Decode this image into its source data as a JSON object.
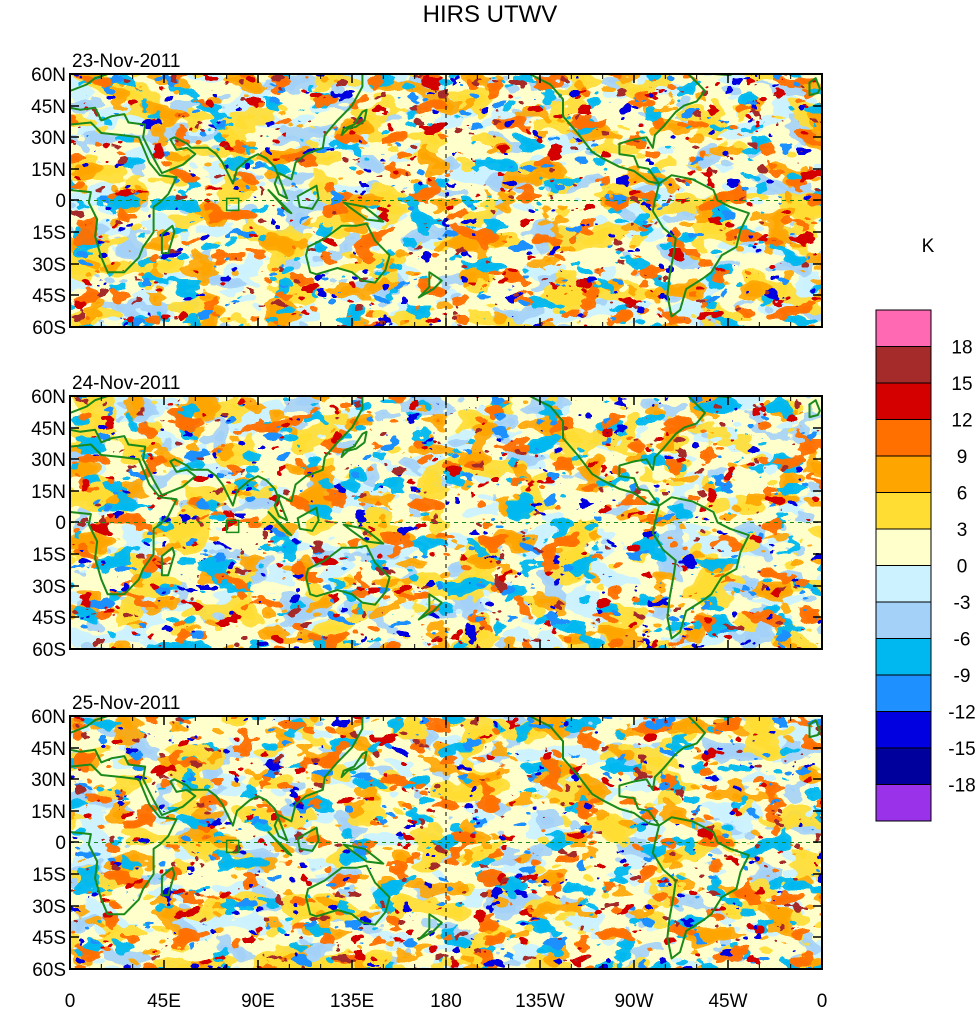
{
  "title": "HIRS UTWV",
  "panels": [
    {
      "date": "23-Nov-2011"
    },
    {
      "date": "24-Nov-2011"
    },
    {
      "date": "25-Nov-2011"
    }
  ],
  "lat_labels": [
    "60N",
    "45N",
    "30N",
    "15N",
    "0",
    "15S",
    "30S",
    "45S",
    "60S"
  ],
  "lon_labels": [
    "0",
    "45E",
    "90E",
    "135E",
    "180",
    "135W",
    "90W",
    "45W",
    "0"
  ],
  "colorbar": {
    "unit": "K",
    "levels": [
      "18",
      "15",
      "12",
      "9",
      "6",
      "3",
      "0",
      "-3",
      "-6",
      "-9",
      "-12",
      "-15",
      "-18"
    ],
    "colors": [
      "#ff69b4",
      "#a52a2a",
      "#d40000",
      "#ff7000",
      "#ffa500",
      "#ffdd33",
      "#ffffcc",
      "#ccf2ff",
      "#a3d1f7",
      "#00b8f0",
      "#1e90ff",
      "#0000e0",
      "#00009c",
      "#9932e8"
    ]
  },
  "colors": {
    "coast": "#1a8a1a",
    "frame": "#000000"
  }
}
